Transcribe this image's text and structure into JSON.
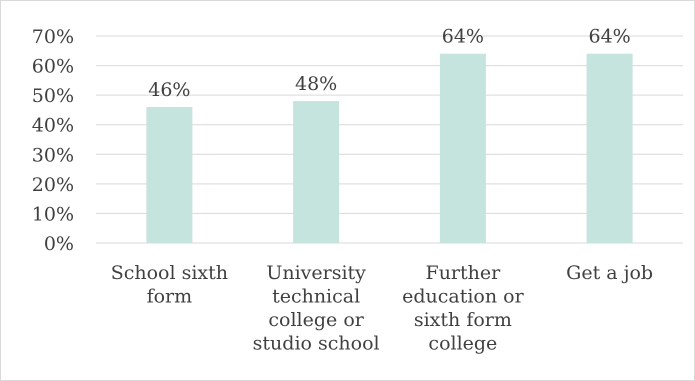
{
  "chart_data": {
    "type": "bar",
    "title": "",
    "xlabel": "",
    "ylabel": "",
    "categories": [
      [
        "School sixth",
        "form"
      ],
      [
        "University",
        "technical",
        "college or",
        "studio school"
      ],
      [
        "Further",
        "education or",
        "sixth form",
        "college"
      ],
      [
        "Get a job"
      ]
    ],
    "values": [
      46,
      48,
      64,
      64
    ],
    "data_labels": [
      "46%",
      "48%",
      "64%",
      "64%"
    ],
    "ylim": [
      0,
      70
    ],
    "yticks": [
      0,
      10,
      20,
      30,
      40,
      50,
      60,
      70
    ],
    "ytick_labels": [
      "0%",
      "10%",
      "20%",
      "30%",
      "40%",
      "50%",
      "60%",
      "70%"
    ],
    "grid": true,
    "legend": "none",
    "bar_color": "#c5e4dd"
  }
}
